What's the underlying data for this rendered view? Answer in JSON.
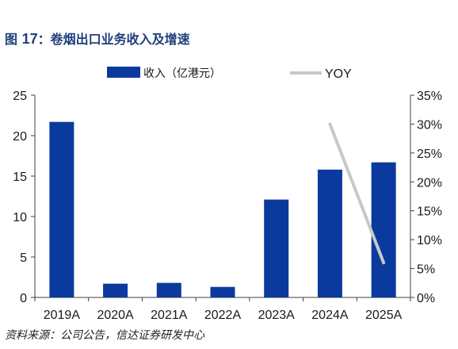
{
  "title": {
    "prefix": "图 ",
    "number": "17",
    "text": "：卷烟出口业务收入及增速"
  },
  "source": "资料来源：公司公告，信达证券研发中心",
  "colors": {
    "bar": "#0b3a9e",
    "line": "#c8c8c8",
    "axis": "#404040",
    "title": "#1f3f7a"
  },
  "chart_data": {
    "type": "bar",
    "categories": [
      "2019A",
      "2020A",
      "2021A",
      "2022A",
      "2023A",
      "2024A",
      "2025A"
    ],
    "series": [
      {
        "name": "收入（亿港元）",
        "type": "bar",
        "axis": "left",
        "values": [
          21.7,
          1.7,
          1.8,
          1.3,
          12.1,
          15.8,
          16.7
        ]
      },
      {
        "name": "YOY",
        "type": "line",
        "axis": "right",
        "values": [
          null,
          null,
          null,
          null,
          null,
          0.3,
          0.06
        ]
      }
    ],
    "y_left": {
      "min": 0,
      "max": 25,
      "ticks": [
        0,
        5,
        10,
        15,
        20,
        25
      ]
    },
    "y_right": {
      "min": 0,
      "max": 0.35,
      "ticks": [
        "0%",
        "5%",
        "10%",
        "15%",
        "20%",
        "25%",
        "30%",
        "35%"
      ]
    },
    "legend_position": "top",
    "grid": false
  }
}
